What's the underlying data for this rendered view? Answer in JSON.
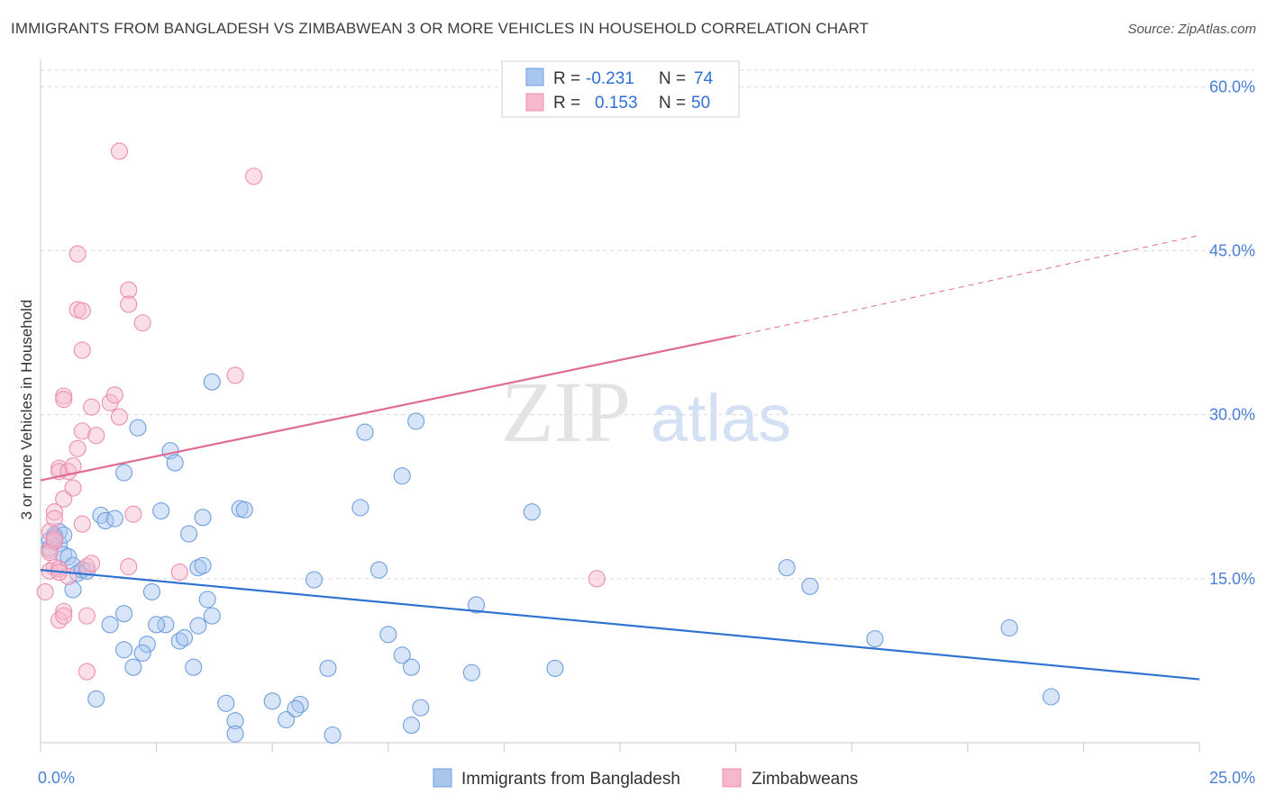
{
  "title": "IMMIGRANTS FROM BANGLADESH VS ZIMBABWEAN 3 OR MORE VEHICLES IN HOUSEHOLD CORRELATION CHART",
  "source": "Source: ZipAtlas.com",
  "watermark": {
    "zip": "ZIP",
    "atlas": "atlas"
  },
  "colors": {
    "blue_fill": "#a9c6ef",
    "blue_stroke": "#6f9fe0",
    "blue_line": "#2f72d0",
    "pink_fill": "#f6b8cb",
    "pink_stroke": "#ec8fae",
    "pink_line": "#e06b93",
    "grid": "#d9d9d9",
    "tick_text": "#4a7fd4"
  },
  "legend": {
    "rows": [
      {
        "r_label": "R =",
        "r_value": "-0.231",
        "n_label": "N =",
        "n_value": "74"
      },
      {
        "r_label": "R =",
        "r_value": "0.153",
        "n_label": "N =",
        "n_value": "50"
      }
    ]
  },
  "chart_data": {
    "type": "scatter",
    "title": "IMMIGRANTS FROM BANGLADESH VS ZIMBABWEAN 3 OR MORE VEHICLES IN HOUSEHOLD CORRELATION CHART",
    "xlabel": "",
    "ylabel": "3 or more Vehicles in Household",
    "xlim": [
      0,
      25
    ],
    "ylim": [
      0,
      62
    ],
    "x_tick_labels": [
      "0.0%",
      "25.0%"
    ],
    "y_ticks": [
      15,
      30,
      45,
      60
    ],
    "y_tick_labels": [
      "15.0%",
      "30.0%",
      "45.0%",
      "60.0%"
    ],
    "grid": true,
    "legend_position": "bottom",
    "series": [
      {
        "name": "Immigrants from Bangladesh",
        "color": "#a9c6ef",
        "points": [
          [
            0.2,
            18.5
          ],
          [
            0.3,
            19.0
          ],
          [
            0.2,
            17.8
          ],
          [
            0.4,
            18.2
          ],
          [
            0.5,
            17.2
          ],
          [
            0.4,
            19.3
          ],
          [
            0.6,
            17.0
          ],
          [
            0.7,
            16.2
          ],
          [
            0.8,
            15.5
          ],
          [
            0.7,
            14.0
          ],
          [
            0.9,
            15.8
          ],
          [
            1.0,
            15.7
          ],
          [
            1.3,
            20.8
          ],
          [
            1.4,
            20.3
          ],
          [
            1.6,
            20.5
          ],
          [
            1.8,
            24.7
          ],
          [
            2.1,
            28.8
          ],
          [
            2.8,
            26.7
          ],
          [
            2.9,
            25.6
          ],
          [
            3.7,
            33.0
          ],
          [
            2.6,
            21.2
          ],
          [
            3.5,
            20.6
          ],
          [
            3.2,
            19.1
          ],
          [
            3.4,
            16.0
          ],
          [
            3.5,
            16.2
          ],
          [
            2.4,
            13.8
          ],
          [
            3.6,
            13.1
          ],
          [
            1.8,
            11.8
          ],
          [
            1.5,
            10.8
          ],
          [
            1.8,
            8.5
          ],
          [
            2.3,
            9.0
          ],
          [
            2.2,
            8.2
          ],
          [
            2.7,
            10.8
          ],
          [
            2.5,
            10.8
          ],
          [
            3.0,
            9.3
          ],
          [
            3.1,
            9.6
          ],
          [
            3.4,
            10.7
          ],
          [
            3.7,
            11.6
          ],
          [
            3.3,
            6.9
          ],
          [
            2.0,
            6.9
          ],
          [
            1.2,
            4.0
          ],
          [
            4.3,
            21.4
          ],
          [
            4.4,
            21.3
          ],
          [
            4.0,
            3.6
          ],
          [
            4.2,
            2.0
          ],
          [
            4.2,
            0.8
          ],
          [
            5.0,
            3.8
          ],
          [
            5.3,
            2.1
          ],
          [
            5.6,
            3.5
          ],
          [
            5.5,
            3.1
          ],
          [
            5.9,
            14.9
          ],
          [
            6.2,
            6.8
          ],
          [
            6.3,
            0.7
          ],
          [
            7.0,
            28.4
          ],
          [
            6.9,
            21.5
          ],
          [
            7.3,
            15.8
          ],
          [
            7.8,
            24.4
          ],
          [
            8.1,
            29.4
          ],
          [
            7.8,
            8.0
          ],
          [
            7.5,
            9.9
          ],
          [
            8.0,
            6.9
          ],
          [
            8.0,
            1.6
          ],
          [
            8.2,
            3.2
          ],
          [
            9.3,
            6.4
          ],
          [
            9.4,
            12.6
          ],
          [
            10.6,
            21.1
          ],
          [
            11.1,
            6.8
          ],
          [
            16.1,
            16.0
          ],
          [
            16.6,
            14.3
          ],
          [
            18.0,
            9.5
          ],
          [
            20.9,
            10.5
          ],
          [
            21.8,
            4.2
          ],
          [
            0.3,
            18.8
          ],
          [
            0.5,
            19.0
          ]
        ]
      },
      {
        "name": "Zimbabweans",
        "color": "#f6b8cb",
        "points": [
          [
            0.1,
            13.8
          ],
          [
            0.2,
            19.3
          ],
          [
            0.2,
            17.6
          ],
          [
            0.3,
            18.4
          ],
          [
            0.3,
            16.0
          ],
          [
            0.2,
            15.7
          ],
          [
            0.4,
            15.9
          ],
          [
            0.4,
            11.2
          ],
          [
            0.5,
            12.0
          ],
          [
            0.5,
            11.6
          ],
          [
            0.3,
            21.1
          ],
          [
            0.3,
            20.5
          ],
          [
            0.4,
            25.1
          ],
          [
            0.4,
            24.8
          ],
          [
            0.5,
            31.7
          ],
          [
            0.5,
            31.4
          ],
          [
            0.5,
            22.3
          ],
          [
            0.6,
            24.8
          ],
          [
            0.7,
            25.3
          ],
          [
            0.7,
            23.3
          ],
          [
            0.8,
            26.9
          ],
          [
            0.9,
            28.5
          ],
          [
            0.9,
            35.9
          ],
          [
            0.8,
            39.6
          ],
          [
            0.9,
            39.5
          ],
          [
            0.8,
            44.7
          ],
          [
            0.9,
            20.0
          ],
          [
            1.0,
            16.1
          ],
          [
            1.0,
            6.5
          ],
          [
            1.2,
            28.1
          ],
          [
            1.1,
            30.7
          ],
          [
            1.5,
            31.1
          ],
          [
            1.6,
            31.8
          ],
          [
            1.7,
            29.8
          ],
          [
            1.7,
            54.1
          ],
          [
            1.9,
            41.4
          ],
          [
            1.9,
            40.1
          ],
          [
            2.2,
            38.4
          ],
          [
            1.9,
            16.1
          ],
          [
            2.0,
            20.9
          ],
          [
            3.0,
            15.6
          ],
          [
            4.2,
            33.6
          ],
          [
            4.6,
            51.8
          ],
          [
            12.0,
            15.0
          ],
          [
            0.2,
            17.4
          ],
          [
            0.3,
            18.6
          ],
          [
            1.1,
            16.4
          ],
          [
            0.6,
            15.2
          ],
          [
            1.0,
            11.6
          ],
          [
            0.4,
            15.6
          ]
        ]
      }
    ],
    "trendlines": [
      {
        "series": "Immigrants from Bangladesh",
        "x": [
          0,
          25
        ],
        "y": [
          15.8,
          5.8
        ],
        "style": "solid"
      },
      {
        "series": "Zimbabweans",
        "x": [
          0,
          15
        ],
        "y": [
          24.0,
          37.2
        ],
        "style": "solid"
      },
      {
        "series": "Zimbabweans",
        "x": [
          15,
          25
        ],
        "y": [
          37.2,
          46.4
        ],
        "style": "dashed"
      }
    ]
  }
}
